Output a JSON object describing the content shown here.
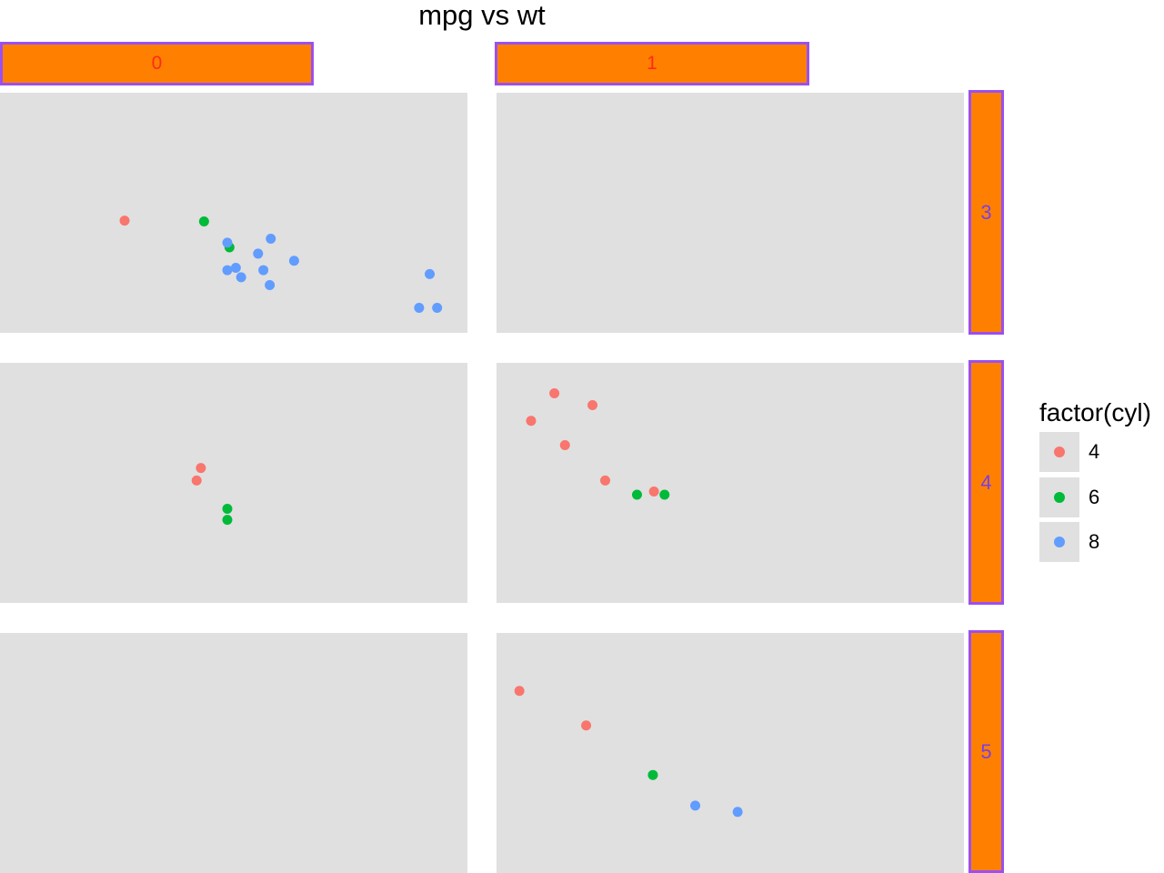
{
  "chart_data": {
    "type": "scatter",
    "title": "mpg vs wt",
    "xlabel": "",
    "ylabel": "",
    "facet_columns": [
      "0",
      "1"
    ],
    "facet_rows": [
      "3",
      "4",
      "5"
    ],
    "legend": {
      "title": "factor(cyl)",
      "placement": "right",
      "entries": [
        {
          "label": "4",
          "color": "#f8766d"
        },
        {
          "label": "6",
          "color": "#00ba38"
        },
        {
          "label": "8",
          "color": "#619cff"
        }
      ]
    },
    "xlim": [
      1.5,
      5.5
    ],
    "ylim": [
      10,
      35
    ],
    "grid": false,
    "series": [
      {
        "key": "4",
        "color": "#f8766d",
        "points": [
          {
            "x": 2.47,
            "y": 21.5,
            "am": "0",
            "gear": "3"
          },
          {
            "x": 3.19,
            "y": 24.4,
            "am": "0",
            "gear": "4"
          },
          {
            "x": 3.15,
            "y": 22.8,
            "am": "0",
            "gear": "4"
          },
          {
            "x": 2.32,
            "y": 22.8,
            "am": "1",
            "gear": "4"
          },
          {
            "x": 2.2,
            "y": 32.4,
            "am": "1",
            "gear": "4"
          },
          {
            "x": 1.62,
            "y": 30.4,
            "am": "1",
            "gear": "4"
          },
          {
            "x": 1.84,
            "y": 33.9,
            "am": "1",
            "gear": "4"
          },
          {
            "x": 1.94,
            "y": 27.3,
            "am": "1",
            "gear": "4"
          },
          {
            "x": 2.78,
            "y": 21.4,
            "am": "1",
            "gear": "4"
          },
          {
            "x": 2.14,
            "y": 26.0,
            "am": "1",
            "gear": "5"
          },
          {
            "x": 1.51,
            "y": 30.4,
            "am": "1",
            "gear": "5"
          }
        ]
      },
      {
        "key": "6",
        "color": "#00ba38",
        "points": [
          {
            "x": 3.22,
            "y": 21.4,
            "am": "0",
            "gear": "3"
          },
          {
            "x": 3.46,
            "y": 18.1,
            "am": "0",
            "gear": "3"
          },
          {
            "x": 3.44,
            "y": 19.2,
            "am": "0",
            "gear": "4"
          },
          {
            "x": 3.44,
            "y": 17.8,
            "am": "0",
            "gear": "4"
          },
          {
            "x": 2.62,
            "y": 21.0,
            "am": "1",
            "gear": "4"
          },
          {
            "x": 2.88,
            "y": 21.0,
            "am": "1",
            "gear": "4"
          },
          {
            "x": 2.77,
            "y": 19.7,
            "am": "1",
            "gear": "5"
          }
        ]
      },
      {
        "key": "8",
        "color": "#619cff",
        "points": [
          {
            "x": 3.44,
            "y": 18.7,
            "am": "0",
            "gear": "3"
          },
          {
            "x": 3.57,
            "y": 14.3,
            "am": "0",
            "gear": "3"
          },
          {
            "x": 4.07,
            "y": 16.4,
            "am": "0",
            "gear": "3"
          },
          {
            "x": 3.73,
            "y": 17.3,
            "am": "0",
            "gear": "3"
          },
          {
            "x": 3.78,
            "y": 15.2,
            "am": "0",
            "gear": "3"
          },
          {
            "x": 5.25,
            "y": 10.4,
            "am": "0",
            "gear": "3"
          },
          {
            "x": 5.42,
            "y": 10.4,
            "am": "0",
            "gear": "3"
          },
          {
            "x": 5.35,
            "y": 14.7,
            "am": "0",
            "gear": "3"
          },
          {
            "x": 3.52,
            "y": 15.5,
            "am": "0",
            "gear": "3"
          },
          {
            "x": 3.44,
            "y": 15.2,
            "am": "0",
            "gear": "3"
          },
          {
            "x": 3.84,
            "y": 13.3,
            "am": "0",
            "gear": "3"
          },
          {
            "x": 3.85,
            "y": 19.2,
            "am": "0",
            "gear": "3"
          },
          {
            "x": 3.17,
            "y": 15.8,
            "am": "1",
            "gear": "5"
          },
          {
            "x": 3.57,
            "y": 15.0,
            "am": "1",
            "gear": "5"
          }
        ]
      }
    ]
  }
}
